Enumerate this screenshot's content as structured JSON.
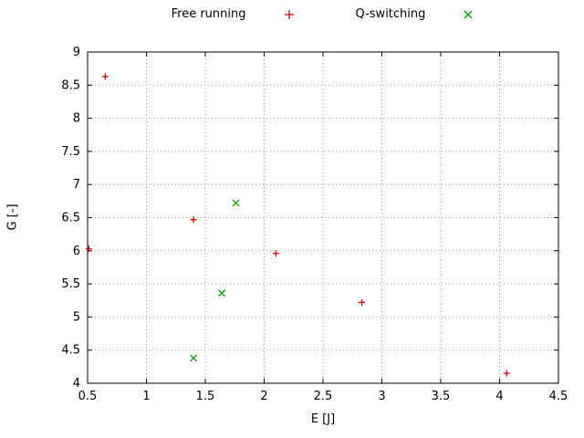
{
  "chart_data": {
    "type": "scatter",
    "title": "",
    "xlabel": "E [J]",
    "ylabel": "G [-]",
    "xlim": [
      0.5,
      4.5
    ],
    "ylim": [
      4,
      9
    ],
    "xticks": [
      0.5,
      1,
      1.5,
      2,
      2.5,
      3,
      3.5,
      4,
      4.5
    ],
    "yticks": [
      4,
      4.5,
      5,
      5.5,
      6,
      6.5,
      7,
      7.5,
      8,
      8.5,
      9
    ],
    "grid": true,
    "legend_position": "top-center",
    "series": [
      {
        "name": "Free running",
        "marker": "plus",
        "color": "#d00000",
        "points": [
          [
            0.51,
            6.03
          ],
          [
            0.65,
            8.63
          ],
          [
            1.4,
            6.47
          ],
          [
            2.1,
            5.96
          ],
          [
            2.83,
            5.22
          ],
          [
            4.06,
            4.15
          ]
        ]
      },
      {
        "name": "Q-switching",
        "marker": "x",
        "color": "#00a000",
        "points": [
          [
            1.76,
            6.72
          ],
          [
            1.64,
            5.36
          ],
          [
            1.4,
            4.38
          ]
        ]
      }
    ]
  }
}
